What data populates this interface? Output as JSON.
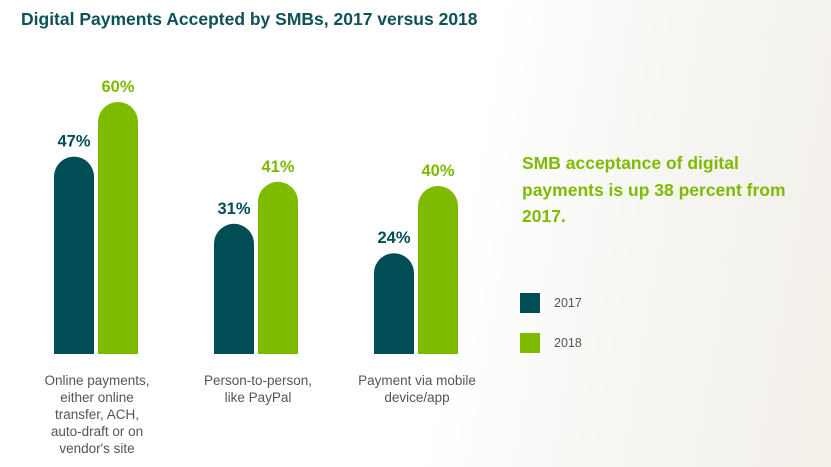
{
  "chart_data": {
    "type": "bar",
    "title": "Digital Payments Accepted by SMBs, 2017 versus 2018",
    "categories": [
      "Online payments, either online transfer, ACH, auto-draft or on vendor's site",
      "Person-to-person, like PayPal",
      "Payment via mobile device/app"
    ],
    "series": [
      {
        "name": "2017",
        "values": [
          47,
          31,
          24
        ],
        "labels": [
          "47%",
          "31%",
          "24%"
        ],
        "color": "#014d55"
      },
      {
        "name": "2018",
        "values": [
          60,
          41,
          40
        ],
        "labels": [
          "60%",
          "41%",
          "40%"
        ],
        "color": "#7dba00"
      }
    ],
    "unit": "%",
    "legend": "right",
    "grid": false,
    "annotation": "SMB acceptance of digital payments is up 38 percent from 2017."
  },
  "category_lines": [
    [
      "Online payments,",
      "either online",
      "transfer, ACH,",
      "auto-draft or on",
      "vendor's site"
    ],
    [
      "Person-to-person,",
      "like PayPal"
    ],
    [
      "Payment via mobile",
      "device/app"
    ]
  ]
}
